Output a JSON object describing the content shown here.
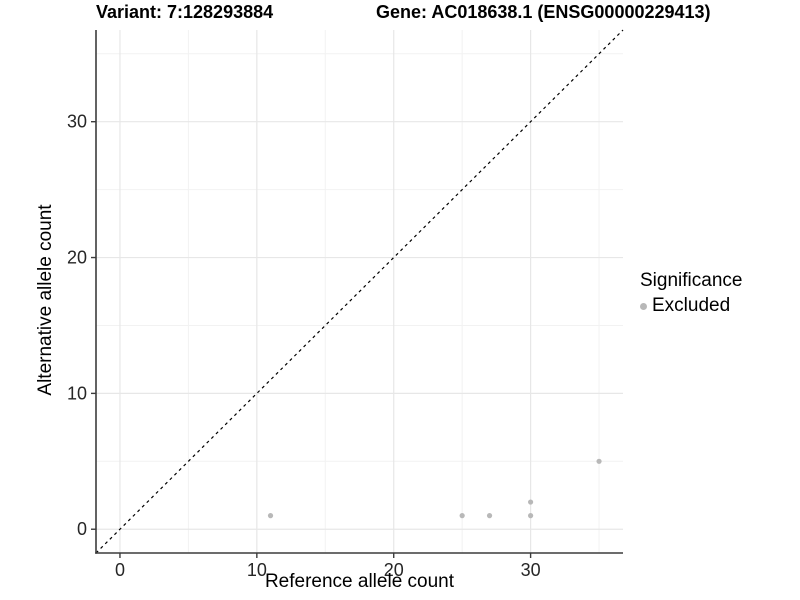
{
  "chart_data": {
    "type": "scatter",
    "titles": {
      "left": "Variant: 7:128293884",
      "right": "Gene: AC018638.1 (ENSG00000229413)"
    },
    "xlabel": "Reference allele count",
    "ylabel": "Alternative allele count",
    "xlim": [
      -1.75,
      36.75
    ],
    "ylim": [
      -1.75,
      36.75
    ],
    "x_major_ticks": [
      0,
      10,
      20,
      30
    ],
    "y_major_ticks": [
      0,
      10,
      20,
      30
    ],
    "x_minor_gridlines": [
      5,
      15,
      25,
      35
    ],
    "y_minor_gridlines": [
      5,
      15,
      25,
      35
    ],
    "grid": "on",
    "identity_line": {
      "style": "dashed",
      "slope": 1,
      "intercept": 0
    },
    "series": [
      {
        "name": "Excluded",
        "marker": "circle",
        "color": "#b8b8b8",
        "points": [
          {
            "x": 11,
            "y": 1
          },
          {
            "x": 25,
            "y": 1
          },
          {
            "x": 27,
            "y": 1
          },
          {
            "x": 30,
            "y": 1
          },
          {
            "x": 30,
            "y": 2
          },
          {
            "x": 35,
            "y": 5
          }
        ]
      }
    ],
    "legend": {
      "position": "right",
      "title": "Significance",
      "entries": [
        {
          "label": "Excluded",
          "color": "#b8b8b8"
        }
      ]
    },
    "colors": {
      "background": "#ffffff",
      "grid_major": "#e7e7e7",
      "grid_minor": "#f2f2f2",
      "axis_line": "#3c3c3c",
      "tick_mark": "#3c3c3c",
      "tick_label": "#262626",
      "identity_line": "#000000",
      "point": "#b8b8b8"
    }
  }
}
